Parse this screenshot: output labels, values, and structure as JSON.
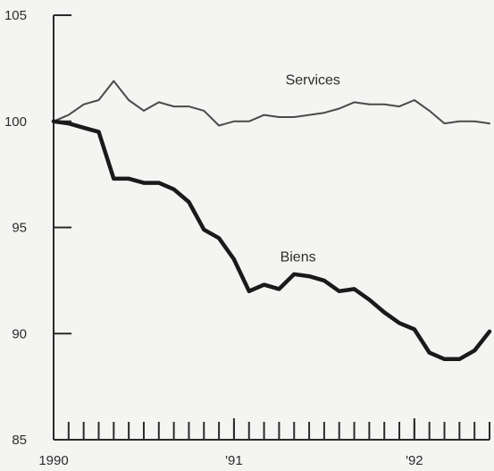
{
  "chart_data": {
    "type": "line",
    "title": "",
    "xlabel": "",
    "ylabel": "",
    "ylim": [
      85,
      105
    ],
    "y_ticks": [
      85,
      90,
      95,
      100,
      105
    ],
    "x_ticks": [
      {
        "label": "1990",
        "x": 0
      },
      {
        "label": "'91",
        "x": 12
      },
      {
        "label": "'92",
        "x": 24
      }
    ],
    "x_range": [
      0,
      29
    ],
    "minor_tick_count": 30,
    "grid": false,
    "colors": {
      "axis": "#2b2b2b",
      "services": "#4a4a4a",
      "biens": "#1a1a1a"
    },
    "series": [
      {
        "name": "Services",
        "x": [
          0,
          1,
          2,
          3,
          4,
          5,
          6,
          7,
          8,
          9,
          10,
          11,
          12,
          13,
          14,
          15,
          16,
          17,
          18,
          19,
          20,
          21,
          22,
          23,
          24,
          25,
          26,
          27,
          28,
          29
        ],
        "values": [
          100.0,
          100.3,
          100.8,
          101.0,
          101.9,
          101.0,
          100.5,
          100.9,
          100.7,
          100.7,
          100.5,
          99.8,
          100.0,
          100.0,
          100.3,
          100.2,
          100.2,
          100.3,
          100.4,
          100.6,
          100.9,
          100.8,
          100.8,
          100.7,
          101.0,
          100.5,
          99.9,
          100.0,
          100.0,
          99.9
        ]
      },
      {
        "name": "Biens",
        "x": [
          0,
          1,
          2,
          3,
          4,
          5,
          6,
          7,
          8,
          9,
          10,
          11,
          12,
          13,
          14,
          15,
          16,
          17,
          18,
          19,
          20,
          21,
          22,
          23,
          24,
          25,
          26,
          27,
          28,
          29
        ],
        "values": [
          100.0,
          99.9,
          99.7,
          99.5,
          97.3,
          97.3,
          97.1,
          97.1,
          96.8,
          96.2,
          94.9,
          94.5,
          93.5,
          92.0,
          92.3,
          92.1,
          92.8,
          92.7,
          92.5,
          92.0,
          92.1,
          91.6,
          91.0,
          90.5,
          90.2,
          89.1,
          88.8,
          88.8,
          89.2,
          90.1
        ]
      }
    ]
  }
}
